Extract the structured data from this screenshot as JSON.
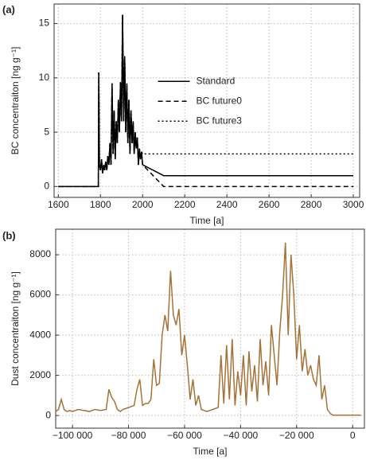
{
  "chart_data": [
    {
      "type": "line",
      "panel_label": "(a)",
      "xlabel": "Time [a]",
      "ylabel": "BC concentraiton [ng g⁻¹]",
      "x": [
        1600,
        1790,
        1792,
        1795,
        1800,
        1805,
        1810,
        1815,
        1820,
        1825,
        1830,
        1835,
        1840,
        1845,
        1850,
        1855,
        1860,
        1865,
        1870,
        1875,
        1880,
        1885,
        1890,
        1895,
        1900,
        1905,
        1910,
        1915,
        1920,
        1925,
        1930,
        1935,
        1940,
        1945,
        1950,
        1955,
        1960,
        1965,
        1970,
        1975,
        1980,
        1985,
        1990,
        1995,
        2000,
        2100,
        3000
      ],
      "series": [
        {
          "name": "Standard",
          "color": "#000000",
          "style": "solid",
          "values": [
            0,
            0,
            10.5,
            2,
            1.5,
            2.5,
            1.2,
            2,
            1.5,
            2.3,
            1.5,
            2.8,
            2,
            4,
            2,
            9.5,
            3,
            7,
            2.5,
            6,
            4,
            8,
            5,
            9.6,
            6,
            15.8,
            6,
            12,
            5,
            9.5,
            4,
            8,
            3,
            7,
            4,
            6,
            3,
            5,
            3.5,
            4.5,
            2,
            3.5,
            2.5,
            3.2,
            2,
            1,
            1
          ]
        },
        {
          "name": "BC future0",
          "color": "#000000",
          "style": "dashed",
          "values": [
            0,
            0,
            10.5,
            2,
            1.5,
            2.5,
            1.2,
            2,
            1.5,
            2.3,
            1.5,
            2.8,
            2,
            4,
            2,
            9.5,
            3,
            7,
            2.5,
            6,
            4,
            8,
            5,
            9.6,
            6,
            15.8,
            6,
            12,
            5,
            9.5,
            4,
            8,
            3,
            7,
            4,
            6,
            3,
            5,
            3.5,
            4.5,
            2,
            3.5,
            2.5,
            3.2,
            2,
            0,
            0
          ]
        },
        {
          "name": "BC future3",
          "color": "#000000",
          "style": "dotted",
          "values": [
            0,
            0,
            10.5,
            2,
            1.5,
            2.5,
            1.2,
            2,
            1.5,
            2.3,
            1.5,
            2.8,
            2,
            4,
            2,
            9.5,
            3,
            7,
            2.5,
            6,
            4,
            8,
            5,
            9.6,
            6,
            15.8,
            6,
            12,
            5,
            9.5,
            4,
            8,
            3,
            7,
            4,
            6,
            3,
            5,
            3.5,
            4.5,
            2,
            3.5,
            2.5,
            3.2,
            3,
            3,
            3
          ]
        }
      ],
      "xlim": [
        1580,
        3030
      ],
      "ylim": [
        -1,
        16.8
      ],
      "xticks": [
        1600,
        1800,
        2000,
        2200,
        2400,
        2600,
        2800,
        3000
      ],
      "yticks": [
        0,
        5,
        10,
        15
      ],
      "grid": true,
      "legend": "center right"
    },
    {
      "type": "line",
      "panel_label": "(b)",
      "xlabel": "Time [a]",
      "ylabel": "Dust concentraiton [ng g⁻¹]",
      "color": "#a67238",
      "x": [
        -106000,
        -105000,
        -104000,
        -103000,
        -102000,
        -101000,
        -100000,
        -98000,
        -96000,
        -94000,
        -92000,
        -90000,
        -88000,
        -87000,
        -86000,
        -85000,
        -84000,
        -83000,
        -82000,
        -80000,
        -78000,
        -77000,
        -76000,
        -75000,
        -74000,
        -73000,
        -72000,
        -71000,
        -70000,
        -69000,
        -68000,
        -67000,
        -66000,
        -65000,
        -64000,
        -63000,
        -62000,
        -61000,
        -60000,
        -59000,
        -58000,
        -57000,
        -56000,
        -55000,
        -54000,
        -52000,
        -50000,
        -48000,
        -47000,
        -46000,
        -45000,
        -44000,
        -43000,
        -42000,
        -41000,
        -40000,
        -39000,
        -38000,
        -37000,
        -36000,
        -35000,
        -34000,
        -33000,
        -32000,
        -31000,
        -30000,
        -29000,
        -28000,
        -27000,
        -26000,
        -25000,
        -24000,
        -23000,
        -22000,
        -21000,
        -20000,
        -19000,
        -18000,
        -17000,
        -16000,
        -15000,
        -14000,
        -13000,
        -12000,
        -11000,
        -10000,
        -9000,
        -8000,
        -7000,
        -5000,
        0,
        3000
      ],
      "values": [
        200,
        300,
        800,
        300,
        200,
        250,
        200,
        300,
        250,
        200,
        300,
        250,
        300,
        1300,
        900,
        700,
        300,
        200,
        300,
        400,
        500,
        1300,
        1800,
        500,
        600,
        600,
        800,
        2800,
        1500,
        1600,
        4000,
        5000,
        4200,
        7200,
        5000,
        4500,
        5300,
        3000,
        4000,
        2500,
        800,
        1800,
        500,
        1000,
        300,
        200,
        300,
        400,
        3000,
        600,
        3500,
        800,
        3800,
        500,
        2200,
        1000,
        3000,
        500,
        3200,
        1200,
        2500,
        700,
        3800,
        1500,
        2700,
        1000,
        4500,
        3000,
        1500,
        4200,
        6000,
        8600,
        4000,
        8000,
        6000,
        2800,
        4500,
        2200,
        3300,
        2000,
        2500,
        1800,
        1500,
        3000,
        800,
        1500,
        300,
        100,
        20,
        20,
        20,
        20
      ],
      "xlim": [
        -106000,
        4200
      ],
      "ylim": [
        -630,
        9270
      ],
      "xticks": [
        {
          "value": -100000,
          "label": "−100 000"
        },
        {
          "value": -80000,
          "label": "−80 000"
        },
        {
          "value": -60000,
          "label": "−60 000"
        },
        {
          "value": -40000,
          "label": "−40 000"
        },
        {
          "value": -20000,
          "label": "−20 000"
        },
        0
      ],
      "yticks": [
        0,
        2000,
        4000,
        6000,
        8000
      ],
      "grid": true
    }
  ]
}
